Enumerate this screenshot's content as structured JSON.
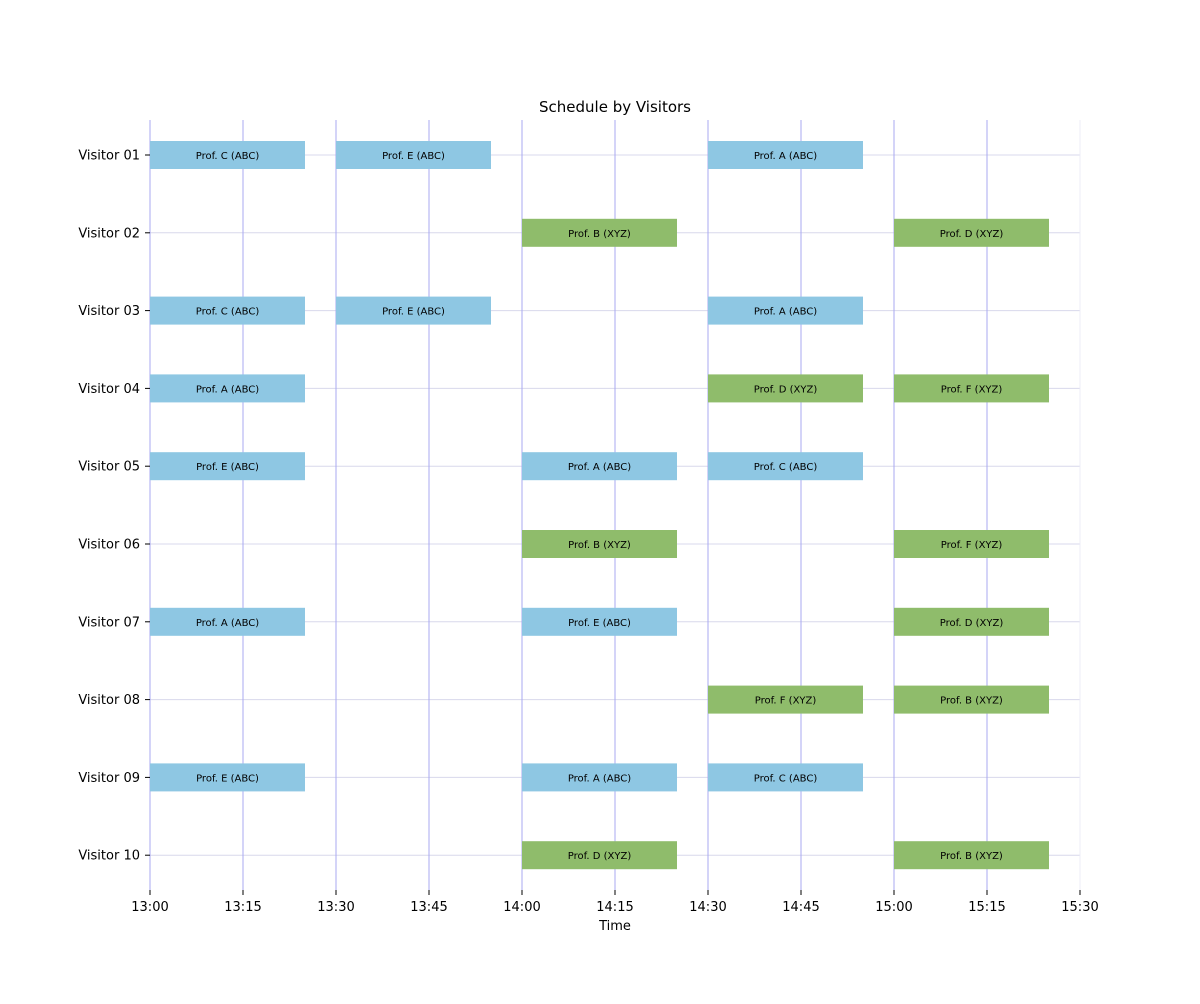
{
  "chart_data": {
    "type": "gantt",
    "title": "Schedule by Visitors",
    "xlabel": "Time",
    "ylabel": "",
    "x_range": [
      "13:00",
      "15:30"
    ],
    "x_ticks": [
      "13:00",
      "13:15",
      "13:30",
      "13:45",
      "14:00",
      "14:15",
      "14:30",
      "14:45",
      "15:00",
      "15:15",
      "15:30"
    ],
    "categories": [
      "Visitor 01",
      "Visitor 02",
      "Visitor 03",
      "Visitor 04",
      "Visitor 05",
      "Visitor 06",
      "Visitor 07",
      "Visitor 08",
      "Visitor 09",
      "Visitor 10"
    ],
    "grid": true,
    "colors": {
      "ABC": "#8ec7e3",
      "XYZ": "#8fbc6b",
      "vgrid": "#a9a9f2",
      "hgrid": "#d8d8ec"
    },
    "meetings": [
      {
        "visitor": "Visitor 01",
        "start": "13:00",
        "end": "13:25",
        "label": "Prof. C (ABC)",
        "group": "ABC"
      },
      {
        "visitor": "Visitor 01",
        "start": "13:30",
        "end": "13:55",
        "label": "Prof. E (ABC)",
        "group": "ABC"
      },
      {
        "visitor": "Visitor 01",
        "start": "14:30",
        "end": "14:55",
        "label": "Prof. A (ABC)",
        "group": "ABC"
      },
      {
        "visitor": "Visitor 02",
        "start": "14:00",
        "end": "14:25",
        "label": "Prof. B (XYZ)",
        "group": "XYZ"
      },
      {
        "visitor": "Visitor 02",
        "start": "15:00",
        "end": "15:25",
        "label": "Prof. D (XYZ)",
        "group": "XYZ"
      },
      {
        "visitor": "Visitor 03",
        "start": "13:00",
        "end": "13:25",
        "label": "Prof. C (ABC)",
        "group": "ABC"
      },
      {
        "visitor": "Visitor 03",
        "start": "13:30",
        "end": "13:55",
        "label": "Prof. E (ABC)",
        "group": "ABC"
      },
      {
        "visitor": "Visitor 03",
        "start": "14:30",
        "end": "14:55",
        "label": "Prof. A (ABC)",
        "group": "ABC"
      },
      {
        "visitor": "Visitor 04",
        "start": "13:00",
        "end": "13:25",
        "label": "Prof. A (ABC)",
        "group": "ABC"
      },
      {
        "visitor": "Visitor 04",
        "start": "14:30",
        "end": "14:55",
        "label": "Prof. D (XYZ)",
        "group": "XYZ"
      },
      {
        "visitor": "Visitor 04",
        "start": "15:00",
        "end": "15:25",
        "label": "Prof. F (XYZ)",
        "group": "XYZ"
      },
      {
        "visitor": "Visitor 05",
        "start": "13:00",
        "end": "13:25",
        "label": "Prof. E (ABC)",
        "group": "ABC"
      },
      {
        "visitor": "Visitor 05",
        "start": "14:00",
        "end": "14:25",
        "label": "Prof. A (ABC)",
        "group": "ABC"
      },
      {
        "visitor": "Visitor 05",
        "start": "14:30",
        "end": "14:55",
        "label": "Prof. C (ABC)",
        "group": "ABC"
      },
      {
        "visitor": "Visitor 06",
        "start": "14:00",
        "end": "14:25",
        "label": "Prof. B (XYZ)",
        "group": "XYZ"
      },
      {
        "visitor": "Visitor 06",
        "start": "15:00",
        "end": "15:25",
        "label": "Prof. F (XYZ)",
        "group": "XYZ"
      },
      {
        "visitor": "Visitor 07",
        "start": "13:00",
        "end": "13:25",
        "label": "Prof. A (ABC)",
        "group": "ABC"
      },
      {
        "visitor": "Visitor 07",
        "start": "14:00",
        "end": "14:25",
        "label": "Prof. E (ABC)",
        "group": "ABC"
      },
      {
        "visitor": "Visitor 07",
        "start": "15:00",
        "end": "15:25",
        "label": "Prof. D (XYZ)",
        "group": "XYZ"
      },
      {
        "visitor": "Visitor 08",
        "start": "14:30",
        "end": "14:55",
        "label": "Prof. F (XYZ)",
        "group": "XYZ"
      },
      {
        "visitor": "Visitor 08",
        "start": "15:00",
        "end": "15:25",
        "label": "Prof. B (XYZ)",
        "group": "XYZ"
      },
      {
        "visitor": "Visitor 09",
        "start": "13:00",
        "end": "13:25",
        "label": "Prof. E (ABC)",
        "group": "ABC"
      },
      {
        "visitor": "Visitor 09",
        "start": "14:00",
        "end": "14:25",
        "label": "Prof. A (ABC)",
        "group": "ABC"
      },
      {
        "visitor": "Visitor 09",
        "start": "14:30",
        "end": "14:55",
        "label": "Prof. C (ABC)",
        "group": "ABC"
      },
      {
        "visitor": "Visitor 10",
        "start": "14:00",
        "end": "14:25",
        "label": "Prof. D (XYZ)",
        "group": "XYZ"
      },
      {
        "visitor": "Visitor 10",
        "start": "15:00",
        "end": "15:25",
        "label": "Prof. B (XYZ)",
        "group": "XYZ"
      }
    ]
  }
}
